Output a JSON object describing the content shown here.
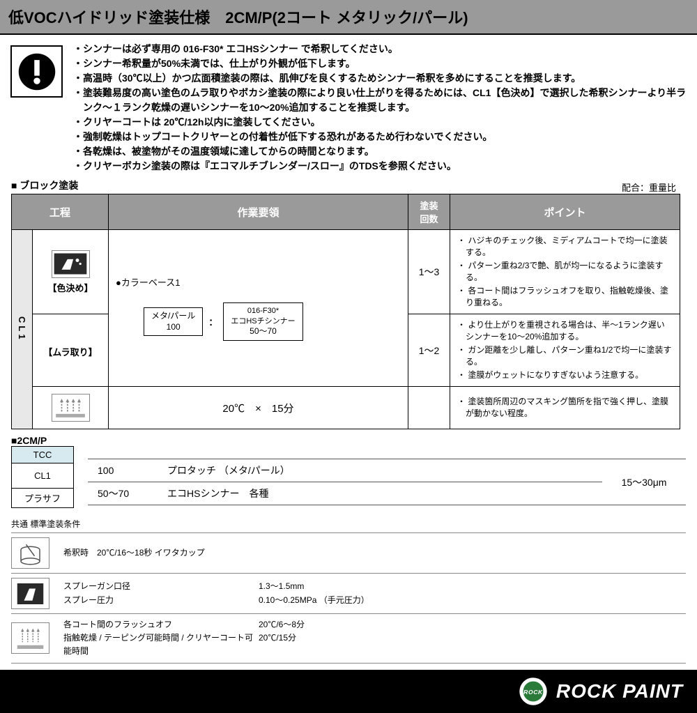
{
  "title": "低VOCハイドリッド塗装仕様　2CM/P(2コート メタリック/パール)",
  "notes": [
    "・シンナーは必ず専用の 016-F30* エコHSシンナー で希釈してください。",
    "・シンナー希釈量が50%未満では、仕上がり外観が低下します。",
    "・高温時（30℃以上）かつ広面積塗装の際は、肌伸びを良くするためシンナー希釈を多めにすることを推奨します。",
    "・塗装難易度の高い塗色のムラ取りやボカシ塗装の際により良い仕上がりを得るためには、CL1【色決め】で選択した希釈シンナーより半ランク～１ランク乾燥の遅いシンナーを10～20%追加することを推奨します。",
    "・クリヤーコートは 20℃/12h以内に塗装してください。",
    "・強制乾燥はトップコートクリヤーとの付着性が低下する恐れがあるため行わないでください。",
    "・各乾燥は、被塗物がその温度領域に達してからの時間となります。",
    "・クリヤーボカシ塗装の際は『エコマルチブレンダー/スロー』のTDSを参照ください。"
  ],
  "block_label": "■ ブロック塗装",
  "ratio_note": "配合：重量比",
  "table": {
    "headers": {
      "process": "工程",
      "work": "作業要領",
      "count": "塗装\n回数",
      "point": "ポイント"
    },
    "group_label": "CL1",
    "rows": [
      {
        "proc_label": "【色決め】",
        "work_heading": "●カラーベース1",
        "mix": {
          "left_top": "メタ/パール",
          "left_bot": "100",
          "sep": "：",
          "right_top": "016-F30*\nエコHSチシンナー",
          "right_bot": "50～70"
        },
        "count": "1～3",
        "points": [
          "・ ハジキのチェック後、ミディアムコートで均一に塗装する。",
          "・ パターン重ね2/3で艶、肌が均一になるように塗装する。",
          "・ 各コート間はフラッシュオフを取り、指触乾燥後、塗り重ねる。"
        ]
      },
      {
        "proc_label": "【ムラ取り】",
        "count": "1～2",
        "points": [
          "・ より仕上がりを重視される場合は、半～1ランク遅いシンナーを10～20%追加する。",
          "・ ガン距離を少し離し、パターン重ね1/2で均一に塗装する。",
          "・ 塗膜がウェットになりすぎないよう注意する。"
        ]
      },
      {
        "dry": "20℃　×　15分",
        "points": [
          "・ 塗装箇所周辺のマスキング箇所を指で強く押し、塗膜が動かない程度。"
        ]
      }
    ]
  },
  "cmp": {
    "label": "■2CM/P",
    "stack": [
      "TCC",
      "CL1",
      "プラサフ"
    ],
    "info": {
      "r1c1": "100",
      "r1c2": "プロタッチ （メタ/パール）",
      "r2c1": "50～70",
      "r2c2": "エコHSシンナー　各種",
      "thickness": "15～30μm"
    }
  },
  "cond": {
    "title": "共通 標準塗装条件",
    "rows": [
      {
        "lines": [
          {
            "lab": "希釈時　20℃/16～18秒 イワタカップ",
            "val": ""
          }
        ]
      },
      {
        "lines": [
          {
            "lab": "スプレーガン口径",
            "val": "1.3～1.5mm"
          },
          {
            "lab": "スプレー圧力",
            "val": "0.10～0.25MPa （手元圧力）"
          }
        ]
      },
      {
        "lines": [
          {
            "lab": "各コート間のフラッシュオフ",
            "val": "20℃/6～8分"
          },
          {
            "lab": "指触乾燥 / テーピング可能時間 / クリヤーコート可能時間",
            "val": "20℃/15分"
          }
        ]
      }
    ]
  },
  "footer": {
    "brand": "ROCK PAINT",
    "logo_text": "ROCK"
  }
}
